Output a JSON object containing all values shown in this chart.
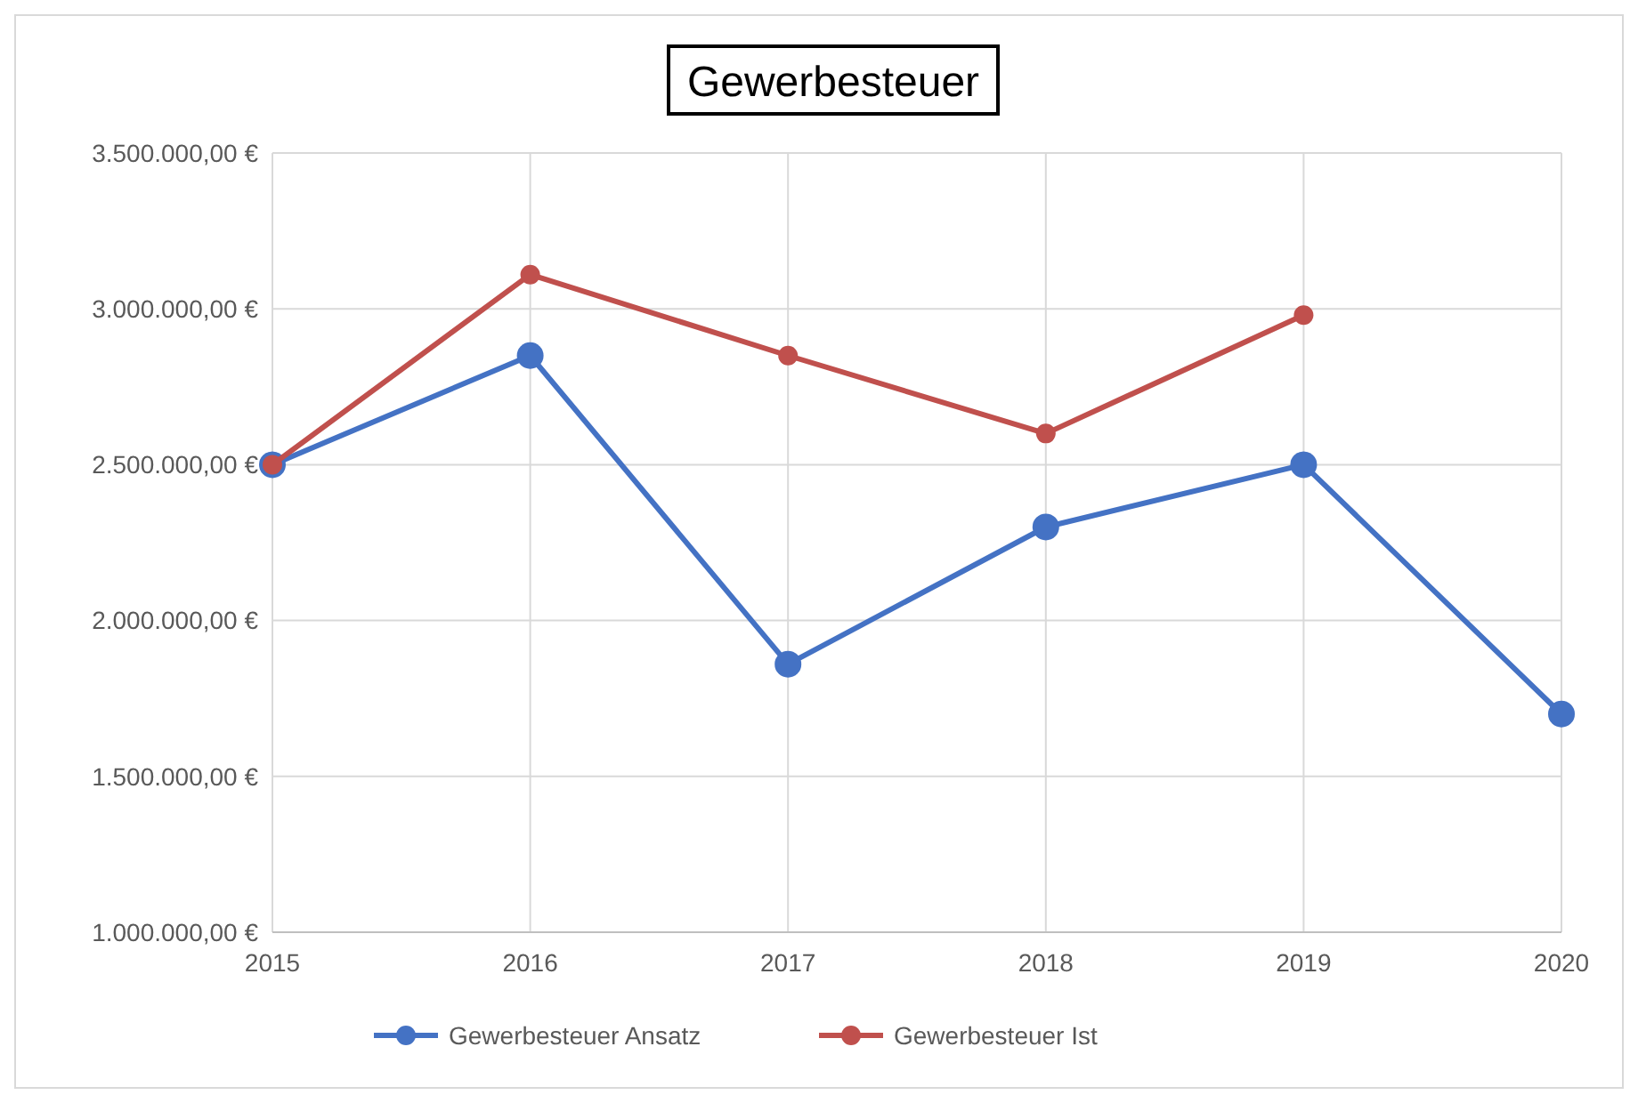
{
  "chart_data": {
    "type": "line",
    "title": "Gewerbesteuer",
    "categories": [
      "2015",
      "2016",
      "2017",
      "2018",
      "2019",
      "2020"
    ],
    "series": [
      {
        "name": "Gewerbesteuer Ansatz",
        "color": "#4472c4",
        "values": [
          2500000,
          2850000,
          1860000,
          2300000,
          2500000,
          1700000
        ]
      },
      {
        "name": "Gewerbesteuer Ist",
        "color": "#c0504d",
        "values": [
          2500000,
          3110000,
          2850000,
          2600000,
          2980000,
          null
        ]
      }
    ],
    "ylim": [
      1000000,
      3500000
    ],
    "yticks": [
      {
        "value": 1000000,
        "label": "1.000.000,00 €"
      },
      {
        "value": 1500000,
        "label": "1.500.000,00 €"
      },
      {
        "value": 2000000,
        "label": "2.000.000,00 €"
      },
      {
        "value": 2500000,
        "label": "2.500.000,00 €"
      },
      {
        "value": 3000000,
        "label": "3.000.000,00 €"
      },
      {
        "value": 3500000,
        "label": "3.500.000,00 €"
      }
    ],
    "grid": true,
    "legend": "bottom",
    "marker": "circle",
    "line_style": "solid"
  }
}
